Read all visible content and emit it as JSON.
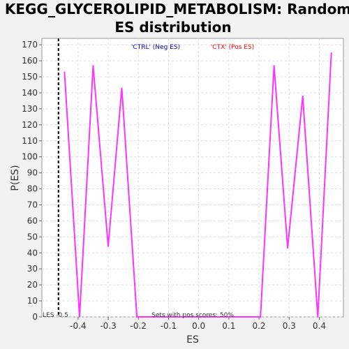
{
  "chart_data": {
    "type": "line",
    "title_line1": "KEGG_GLYCEROLIPID_METABOLISM: Random",
    "title_line2": "ES distribution",
    "xlabel": "ES",
    "ylabel": "P(ES)",
    "xlim": [
      -0.52,
      0.48
    ],
    "ylim": [
      0,
      174
    ],
    "xticks": [
      -0.4,
      -0.3,
      -0.2,
      -0.1,
      0.0,
      0.1,
      0.2,
      0.3,
      0.4
    ],
    "xtick_labels": [
      "-0.4",
      "-0.3",
      "-0.2",
      "-0.1",
      "0.0",
      "0.1",
      "0.2",
      "0.3",
      "0.4"
    ],
    "yticks": [
      0,
      10,
      20,
      30,
      40,
      50,
      60,
      70,
      80,
      90,
      100,
      110,
      120,
      130,
      140,
      150,
      160,
      170
    ],
    "ytick_labels": [
      "0",
      "10",
      "20",
      "30",
      "40",
      "50",
      "60",
      "70",
      "80",
      "90",
      "100",
      "110",
      "120",
      "130",
      "140",
      "150",
      "160",
      "170"
    ],
    "grid": true,
    "series": [
      {
        "color": "#ff33ff",
        "x": [
          -0.445,
          -0.395,
          -0.35,
          -0.3,
          -0.255,
          -0.205,
          0.205,
          0.25,
          0.295,
          0.345,
          0.395,
          0.44
        ],
        "y": [
          153,
          0,
          157,
          44,
          143,
          0,
          0,
          157,
          43,
          138,
          0,
          165
        ]
      }
    ],
    "vline": {
      "x": -0.465,
      "style": "dashed",
      "color": "#000000"
    },
    "legend": [
      {
        "text": "'CTRL' (Neg ES)",
        "color": "#0000cc"
      },
      {
        "text": "'CTX' (Pos ES)",
        "color": "#ff0000"
      }
    ],
    "annotations": {
      "les": "LES -0.5",
      "sets": "Sets with pos scores: 50%"
    }
  }
}
